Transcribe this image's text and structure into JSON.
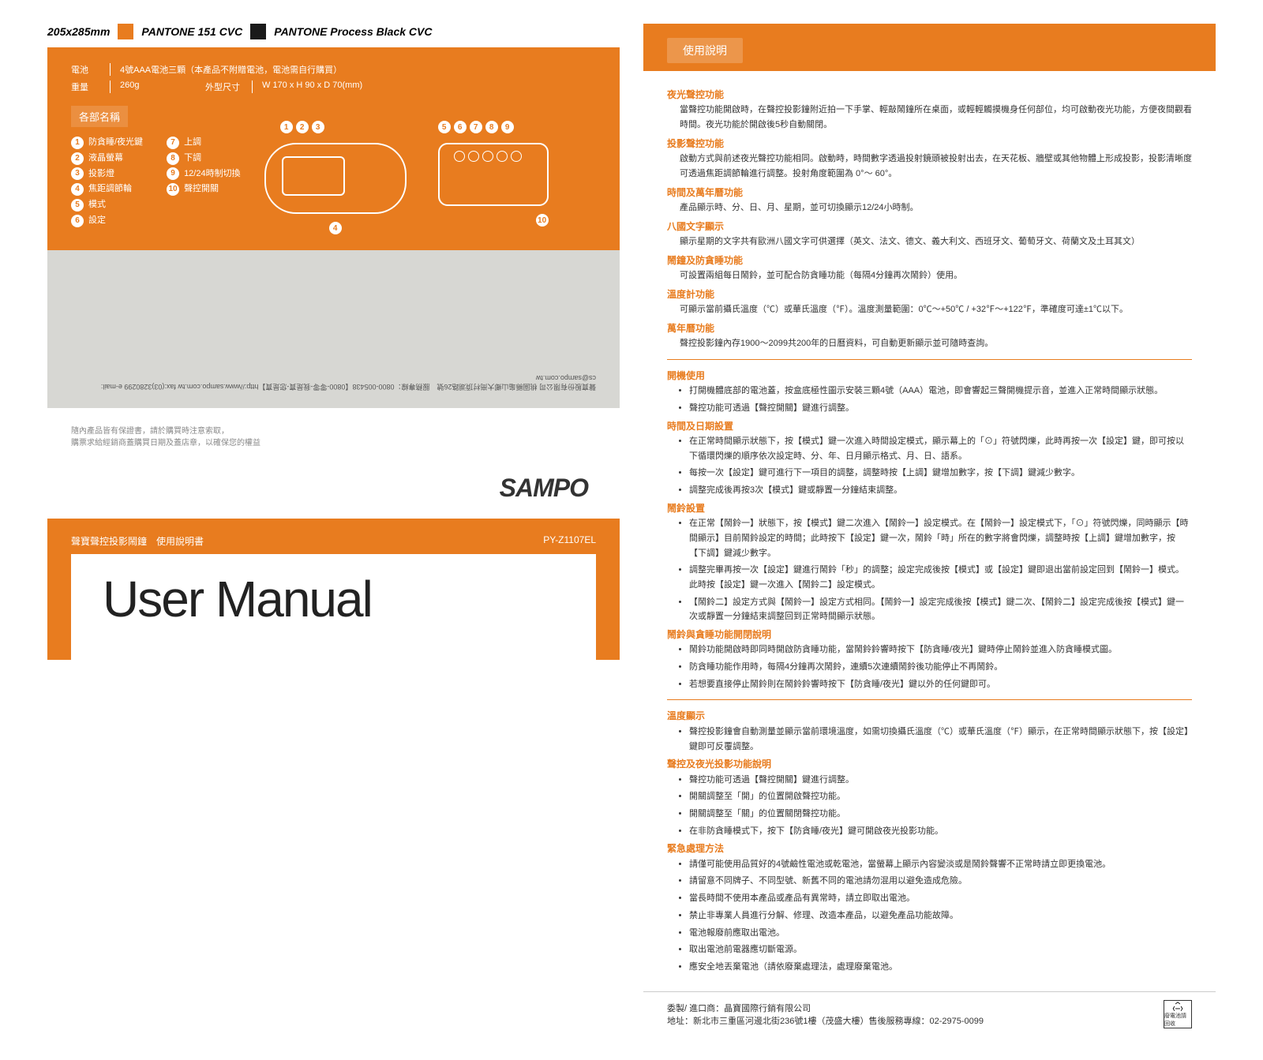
{
  "colors": {
    "orange": "#e87c1f",
    "black": "#1a1a1a",
    "gray": "#d7d7d3"
  },
  "header": {
    "dims": "205x285mm",
    "pantone1": "PANTONE 151 CVC",
    "pantone2": "PANTONE Process Black CVC"
  },
  "spec": {
    "battery_label": "電池",
    "battery_val": "4號AAA電池三顆（本產品不附贈電池，電池需自行購買）",
    "weight_label": "重量",
    "weight_val": "260g",
    "size_label": "外型尺寸",
    "size_val": "W 170 x H 90 x D 70(mm)"
  },
  "parts": {
    "title": "各部名稱",
    "items": [
      "防貪睡/夜光鍵",
      "液晶螢幕",
      "投影燈",
      "焦距調節輪",
      "模式",
      "設定",
      "上調",
      "下調",
      "12/24時制切換",
      "聲控開關"
    ]
  },
  "contact_rotated": "聲寶股份有限公司 桃園縣龜山鄉大崗村頂湖路26號　服務專線：0800-005438【0800-零零-我是寶-您是寶】http://www.sampo.com.tw  fax:(03)3280299  e-mail: cs@sampo.com.tw",
  "warranty": {
    "line1": "隨內產品皆有保證書，請於購買時注意索取，",
    "line2": "購票求給經銷商蓋購買日期及蓋店章，以確保您的權益"
  },
  "sampo": "SAMPO",
  "manual": {
    "subtitle": "聲寶聲控投影鬧鐘　使用說明書",
    "model": "PY-Z1107EL",
    "title": "User Manual"
  },
  "instruct": {
    "tab": "使用說明",
    "sec1": [
      {
        "t": "夜光聲控功能",
        "d": "當聲控功能開啟時，在聲控投影鐘附近拍一下手掌、輕敲鬧鐘所在桌面，或輕輕觸摸機身任何部位，均可啟動夜光功能，方便夜間觀看時間。夜光功能於開啟後5秒自動關閉。"
      },
      {
        "t": "投影聲控功能",
        "d": "啟動方式與前述夜光聲控功能相同。啟動時，時間數字透過投射鏡頭被投射出去，在天花板、牆壁或其他物體上形成投影，投影清晰度可透過焦距調節輪進行調整。投射角度範圍為 0°～ 60°。"
      },
      {
        "t": "時間及萬年曆功能",
        "d": "產品顯示時、分、日、月、星期，並可切換顯示12/24小時制。"
      },
      {
        "t": "八國文字顯示",
        "d": "顯示星期的文字共有歐洲八國文字可供選擇（英文、法文、德文、義大利文、西班牙文、葡萄牙文、荷蘭文及土耳其文）"
      },
      {
        "t": "鬧鐘及防貪睡功能",
        "d": "可設置兩組每日鬧鈴，並可配合防貪睡功能（每隔4分鐘再次鬧鈴）使用。"
      },
      {
        "t": "溫度計功能",
        "d": "可顯示當前攝氏溫度（℃）或華氏溫度（℉）。溫度測量範圍：0℃～+50℃ / +32℉～+122℉，準確度可達±1℃以下。"
      },
      {
        "t": "萬年曆功能",
        "d": "聲控投影鐘內存1900～2099共200年的日曆資料，可自動更新顯示並可隨時查詢。"
      }
    ],
    "sec2_title": "開機使用",
    "sec2": [
      "打開機體底部的電池蓋，按盒底極性圖示安裝三顆4號（AAA）電池，即會響起三聲開機提示音，並進入正常時間顯示狀態。",
      "聲控功能可透過【聲控開關】鍵進行調整。"
    ],
    "sec3_title": "時間及日期設置",
    "sec3": [
      "在正常時間顯示狀態下，按【模式】鍵一次進入時間設定模式，顯示幕上的「⊙」符號閃爍，此時再按一次【設定】鍵，即可按以下循環閃爍的順序依次設定時、分、年、日月顯示格式、月、日、語系。",
      "每按一次【設定】鍵可進行下一項目的調整，調整時按【上調】鍵增加數字，按【下調】鍵減少數字。",
      "調整完成後再按3次【模式】鍵或靜置一分鐘結束調整。"
    ],
    "sec4_title": "鬧鈴設置",
    "sec4": [
      "在正常【鬧鈴一】狀態下，按【模式】鍵二次進入【鬧鈴一】設定模式。在【鬧鈴一】設定模式下，「⊙」符號閃爍，同時顯示【時間顯示】目前鬧鈴設定的時間；此時按下【設定】鍵一次，鬧鈴「時」所在的數字將會閃爍，調整時按【上調】鍵增加數字，按【下調】鍵減少數字。",
      "調整完畢再按一次【設定】鍵進行鬧鈴「秒」的調整；設定完成後按【模式】或【設定】鍵即退出當前設定回到【鬧鈴一】模式。此時按【設定】鍵一次進入【鬧鈴二】設定模式。",
      "【鬧鈴二】設定方式與【鬧鈴一】設定方式相同。【鬧鈴一】設定完成後按【模式】鍵二次、【鬧鈴二】設定完成後按【模式】鍵一次或靜置一分鐘結束調整回到正常時間顯示狀態。"
    ],
    "sec5_title": "鬧鈴與貪睡功能開閉說明",
    "sec5": [
      "鬧鈴功能開啟時即同時開啟防貪睡功能，當鬧鈴鈴響時按下【防貪睡/夜光】鍵時停止鬧鈴並進入防貪睡模式圖。",
      "防貪睡功能作用時，每隔4分鐘再次鬧鈴，連續5次連續鬧鈴後功能停止不再鬧鈴。",
      "若想要直接停止鬧鈴則在鬧鈴鈴響時按下【防貪睡/夜光】鍵以外的任何鍵即可。"
    ],
    "sec6_title": "溫度顯示",
    "sec6": [
      "聲控投影鐘會自動測量並顯示當前環境溫度，如需切換攝氏溫度（℃）或華氏溫度（℉）顯示，在正常時間顯示狀態下，按【設定】鍵即可反覆調整。"
    ],
    "sec7_title": "聲控及夜光投影功能說明",
    "sec7": [
      "聲控功能可透過【聲控開關】鍵進行調整。",
      "開關調整至「開」的位置開啟聲控功能。",
      "開關調整至「關」的位置關閉聲控功能。",
      "在非防貪睡模式下，按下【防貪睡/夜光】鍵可開啟夜光投影功能。"
    ],
    "sec8_title": "緊急處理方法",
    "sec8": [
      "請僅可能使用品質好的4號鹼性電池或乾電池，當螢幕上顯示內容變淡或是鬧鈴聲響不正常時請立即更換電池。",
      "請留意不同牌子、不同型號、新舊不同的電池請勿混用以避免造成危險。",
      "當長時間不使用本產品或產品有異常時，請立即取出電池。",
      "禁止非專業人員進行分解、修理、改造本產品，以避免產品功能故障。",
      "電池報廢前應取出電池。",
      "取出電池前電器應切斷電源。",
      "應安全地丟棄電池（請依廢棄處理法，處理廢棄電池。"
    ]
  },
  "footer": {
    "line1": "委製/ 進口商：晶寶國際行銷有限公司",
    "line2": "地址：新北市三重區河邊北街236號1樓（茂盛大樓）售後服務專線：02-2975-0099",
    "recycle": "廢電池請回收"
  }
}
